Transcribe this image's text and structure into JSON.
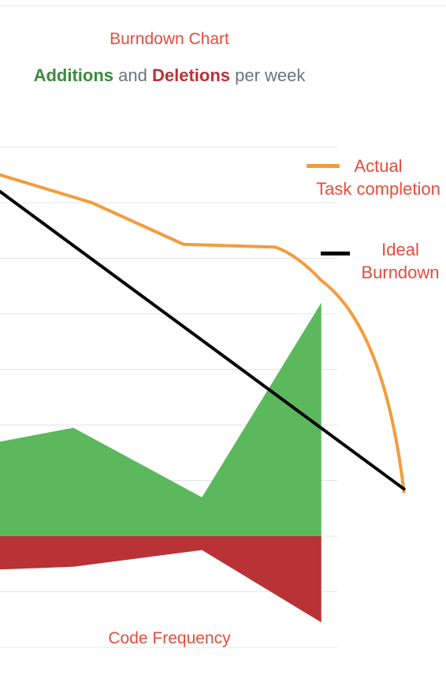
{
  "chart_data": {
    "type": "line",
    "title": "Burndown Chart",
    "subtitle": {
      "additions": "Additions",
      "and": " and ",
      "deletions": "Deletions",
      "per_week": " per week"
    },
    "footer": "Code Frequency",
    "ylim": [
      -4,
      14
    ],
    "grid": true,
    "legend_position": "right",
    "series": [
      {
        "name": "Actual Task completion",
        "type": "line",
        "color": "#f39c3d",
        "x": [
          0,
          1,
          2,
          3,
          3.5,
          4.4
        ],
        "values": [
          13.0,
          12.0,
          10.5,
          10.4,
          9.2,
          1.6
        ]
      },
      {
        "name": "Ideal Burndown",
        "type": "line",
        "color": "#000000",
        "x": [
          0,
          4.4
        ],
        "values": [
          12.4,
          1.7
        ]
      },
      {
        "name": "Additions",
        "type": "area",
        "color": "#5cb85c",
        "x": [
          0,
          0.8,
          2.2,
          3.5
        ],
        "values": [
          3.4,
          3.9,
          1.4,
          8.4
        ]
      },
      {
        "name": "Deletions",
        "type": "area",
        "color": "#b83236",
        "x": [
          0,
          0.8,
          2.2,
          3.5
        ],
        "values": [
          -1.2,
          -1.1,
          -0.5,
          -3.1
        ]
      }
    ],
    "legend": [
      {
        "lines": [
          "Actual",
          "Task completion"
        ],
        "color": "#f39c3d"
      },
      {
        "lines": [
          "Ideal",
          "Burndown"
        ],
        "color": "#000000"
      }
    ]
  }
}
